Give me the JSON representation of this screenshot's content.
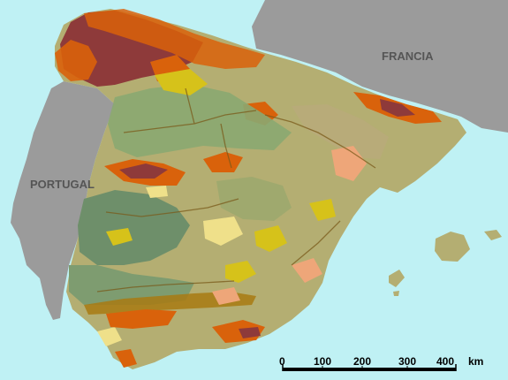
{
  "map": {
    "labels": {
      "france": "FRANCIA",
      "portugal": "PORTUGAL"
    },
    "scale_bar": {
      "ticks": [
        "0",
        "100",
        "200",
        "300",
        "400"
      ],
      "unit": "km"
    },
    "colors": {
      "sea": "#bff1f4",
      "foreign_land": "#9b9b9b",
      "base_soil": "#b4ae72",
      "mountain_brown": "#8e3a3a",
      "orange": "#d9620b",
      "green_grey": "#8aa871",
      "yellow": "#d6c21a",
      "light_yellow": "#efe08a",
      "salmon": "#eea679",
      "dark_green": "#6e8f6a",
      "ochre": "#a87a12"
    }
  }
}
